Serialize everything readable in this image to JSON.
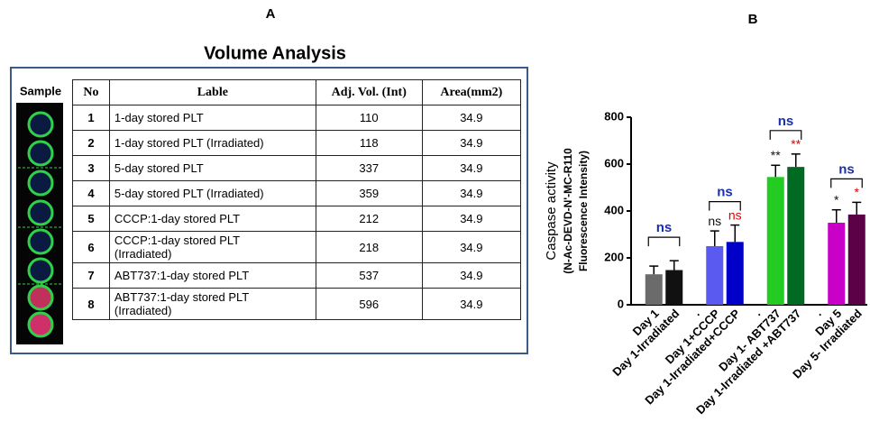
{
  "panel_a": {
    "label": "A",
    "title": "Volume Analysis",
    "sample_label": "Sample",
    "table": {
      "header": [
        "No",
        "Lable",
        "Adj. Vol. (Int)",
        "Area(mm2)"
      ],
      "rows": [
        [
          1,
          [
            "1-day stored PLT"
          ],
          110,
          34.9
        ],
        [
          2,
          [
            "1-day stored PLT (Irradiated)"
          ],
          118,
          34.9
        ],
        [
          3,
          [
            "5-day stored PLT"
          ],
          337,
          34.9
        ],
        [
          4,
          [
            "5-day stored PLT (Irradiated)"
          ],
          359,
          34.9
        ],
        [
          5,
          [
            "CCCP:1-day stored PLT"
          ],
          212,
          34.9
        ],
        [
          6,
          [
            "CCCP:1-day stored PLT",
            "(Irradiated)"
          ],
          218,
          34.9
        ],
        [
          7,
          [
            "ABT737:1-day stored PLT"
          ],
          537,
          34.9
        ],
        [
          8,
          [
            "ABT737:1-day stored PLT",
            "(Irradiated)"
          ],
          596,
          34.9
        ]
      ]
    }
  },
  "panel_b_label": "B",
  "chart_data": {
    "type": "bar",
    "y_label": [
      "Caspase activity",
      "(N-Ac-DEVD-N'-MC-R110",
      "Fluorescence Intensity)"
    ],
    "categories": [
      "Day 1",
      "Day 1-Irradiated",
      ".",
      "Day 1+CCCP",
      "Day 1-Irradiated+CCCP",
      ".",
      "Day 1- ABT737",
      "Day 1-Irradiated +ABT737",
      ".",
      "Day 5",
      "Day 5- Irradiated"
    ],
    "values": [
      130,
      148,
      null,
      250,
      268,
      null,
      545,
      588,
      null,
      350,
      385
    ],
    "errors": [
      35,
      40,
      null,
      65,
      72,
      null,
      50,
      55,
      null,
      55,
      52
    ],
    "colors": [
      "#6b6b6b",
      "#111111",
      null,
      "#5a5af0",
      "#0000c8",
      null,
      "#22cc22",
      "#006a22",
      null,
      "#c800c8",
      "#5c0048"
    ],
    "bar_labels": [
      null,
      null,
      null,
      "ns",
      "ns",
      null,
      "**",
      "**",
      null,
      "*",
      "*"
    ],
    "bar_label_colors": [
      null,
      null,
      null,
      "#111111",
      "#e00000",
      null,
      "#111111",
      "#e00000",
      null,
      "#111111",
      "#e00000"
    ],
    "brackets": [
      {
        "from": 0,
        "to": 1,
        "label": "ns"
      },
      {
        "from": 3,
        "to": 4,
        "label": "ns"
      },
      {
        "from": 6,
        "to": 7,
        "label": "ns"
      },
      {
        "from": 9,
        "to": 10,
        "label": "ns"
      }
    ],
    "bracket_color": "#1a2fb0",
    "ylim": [
      0,
      800
    ],
    "yticks": [
      0,
      200,
      400,
      600,
      800
    ]
  }
}
